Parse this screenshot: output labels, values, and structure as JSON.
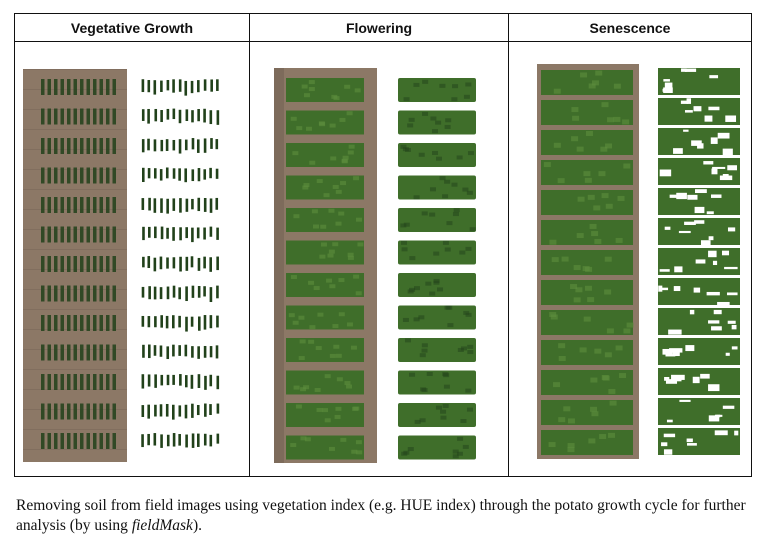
{
  "figure": {
    "panels": [
      {
        "id": "vegetative",
        "title": "Vegetative Growth"
      },
      {
        "id": "flowering",
        "title": "Flowering"
      },
      {
        "id": "senescence",
        "title": "Senescence"
      }
    ]
  },
  "caption": {
    "text_before": "Removing soil from field images using vegetation index (e.g. HUE index) through the potato growth cycle for further analysis (by using ",
    "emphasis": "fieldMask",
    "text_after": ")."
  },
  "colors": {
    "soil": "#8c7866",
    "soil_dark": "#6e5d4f",
    "plant": "#3f6e2a",
    "plant_dark": "#21411a",
    "plant_light": "#5e8d3e"
  }
}
